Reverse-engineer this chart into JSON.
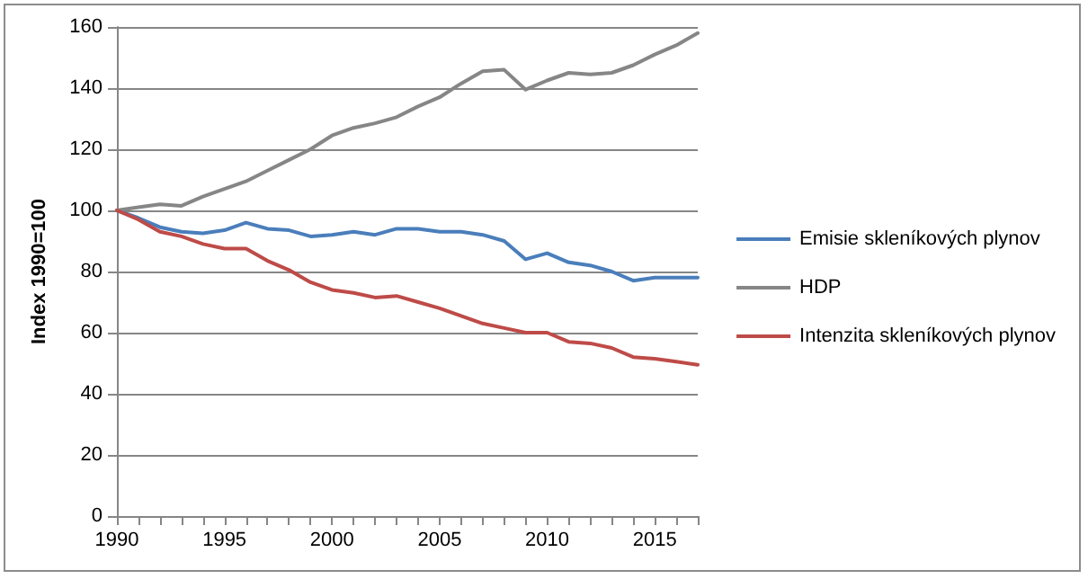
{
  "chart_data": {
    "type": "line",
    "ylabel": "Index 1990=100",
    "x": [
      1990,
      1991,
      1992,
      1993,
      1994,
      1995,
      1996,
      1997,
      1998,
      1999,
      2000,
      2001,
      2002,
      2003,
      2004,
      2005,
      2006,
      2007,
      2008,
      2009,
      2010,
      2011,
      2012,
      2013,
      2014,
      2015,
      2016,
      2017
    ],
    "series": [
      {
        "name": "Emisie skleníkových plynov",
        "color": "#4a7ebb",
        "values": [
          100,
          97.5,
          94.5,
          93,
          92.5,
          93.5,
          96,
          94,
          93.5,
          91.5,
          92,
          93,
          92,
          94,
          94,
          93,
          93,
          92,
          90,
          84,
          86,
          83,
          82,
          80,
          77,
          78,
          78,
          78
        ]
      },
      {
        "name": "HDP",
        "color": "#868686",
        "values": [
          100,
          101,
          102,
          101.5,
          104.5,
          107,
          109.5,
          113,
          116.5,
          120,
          124.5,
          127,
          128.5,
          130.5,
          134,
          137,
          141.5,
          145.5,
          146,
          139.5,
          142.5,
          145,
          144.5,
          145,
          147.5,
          151,
          154,
          158
        ]
      },
      {
        "name": "Intenzita skleníkových plynov",
        "color": "#be4b48",
        "values": [
          100,
          97,
          93,
          91.5,
          89,
          87.5,
          87.5,
          83.5,
          80.5,
          76.5,
          74,
          73,
          71.5,
          72,
          70,
          68,
          65.5,
          63,
          61.5,
          60,
          60,
          57,
          56.5,
          55,
          52,
          51.5,
          50.5,
          49.5
        ]
      }
    ],
    "xlim": [
      1990,
      2017
    ],
    "xticks": [
      1990,
      1995,
      2000,
      2005,
      2010,
      2015
    ],
    "ylim": [
      0,
      160
    ],
    "yticks": [
      0,
      20,
      40,
      60,
      80,
      100,
      120,
      140,
      160
    ],
    "grid": "y",
    "legend": "right",
    "marker": "none",
    "line_style": "solid"
  }
}
